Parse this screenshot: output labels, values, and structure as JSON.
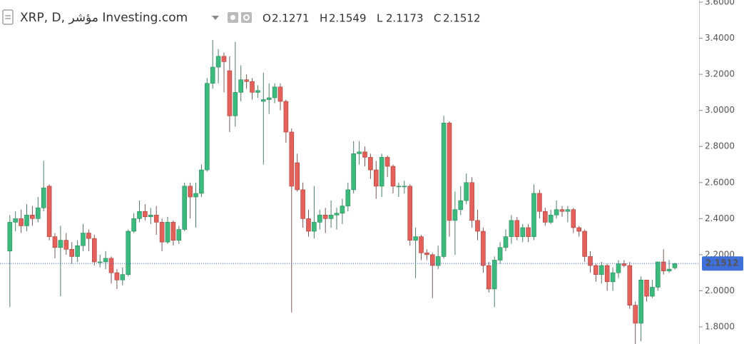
{
  "chart_data": {
    "type": "candlestick",
    "title": "XRP, D, مؤشر Investing.com",
    "header_labels": [
      "O",
      "H",
      "L",
      "C"
    ],
    "header_values": [
      2.1271,
      2.1549,
      2.1173,
      2.1512
    ],
    "current_price": 2.1512,
    "up_color": "#3cb97d",
    "down_color": "#e4605a",
    "price_line_color": "#3f6fd8",
    "ylim": [
      1.705,
      3.612
    ],
    "yticks": [
      {
        "value": 3.6,
        "label": "3.6000"
      },
      {
        "value": 3.4,
        "label": "3.4000"
      },
      {
        "value": 3.2,
        "label": "3.2000"
      },
      {
        "value": 3.0,
        "label": "3.0000"
      },
      {
        "value": 2.8,
        "label": "2.8000"
      },
      {
        "value": 2.6,
        "label": "2.6000"
      },
      {
        "value": 2.4,
        "label": "2.4000"
      },
      {
        "value": 2.2,
        "label": "2.2000"
      },
      {
        "value": 2.0,
        "label": "2.0000"
      },
      {
        "value": 1.8,
        "label": "1.8000"
      }
    ],
    "open": [
      2.22,
      2.38,
      2.4,
      2.36,
      2.42,
      2.4,
      2.46,
      2.58,
      2.3,
      2.24,
      2.28,
      2.23,
      2.19,
      2.25,
      2.32,
      2.29,
      2.16,
      2.16,
      2.18,
      2.1,
      2.06,
      2.09,
      2.33,
      2.4,
      2.44,
      2.41,
      2.42,
      2.38,
      2.27,
      2.38,
      2.28,
      2.34,
      2.58,
      2.52,
      2.54,
      2.67,
      3.15,
      3.24,
      3.3,
      3.22,
      2.97,
      3.1,
      3.17,
      3.16,
      3.1,
      3.05,
      3.06,
      3.07,
      3.13,
      3.05,
      2.88,
      2.71,
      2.56,
      2.4,
      2.33,
      2.38,
      2.42,
      2.4,
      2.42,
      2.43,
      2.47,
      2.56,
      2.76,
      2.77,
      2.74,
      2.67,
      2.58,
      2.74,
      2.69,
      2.58,
      2.58,
      2.58,
      2.28,
      2.3,
      2.21,
      2.2,
      2.14,
      2.19,
      2.93,
      2.39,
      2.45,
      2.5,
      2.6,
      2.39,
      2.33,
      2.14,
      2.01,
      2.17,
      2.24,
      2.3,
      2.39,
      2.3,
      2.35,
      2.3,
      2.54,
      2.44,
      2.38,
      2.42,
      2.45,
      2.44,
      2.45,
      2.35,
      2.33,
      2.19,
      2.14,
      2.09,
      2.14,
      2.05,
      2.1,
      2.15,
      2.14,
      1.92,
      1.82,
      2.06,
      1.97,
      2.02,
      2.16,
      2.11,
      2.1271
    ],
    "high": [
      2.42,
      2.44,
      2.45,
      2.48,
      2.47,
      2.52,
      2.72,
      2.59,
      2.32,
      2.36,
      2.32,
      2.27,
      2.28,
      2.37,
      2.34,
      2.31,
      2.2,
      2.22,
      2.19,
      2.12,
      2.13,
      2.34,
      2.43,
      2.5,
      2.48,
      2.46,
      2.47,
      2.4,
      2.41,
      2.39,
      2.36,
      2.6,
      2.6,
      2.6,
      2.7,
      3.18,
      3.39,
      3.34,
      3.32,
      3.3,
      3.38,
      3.25,
      3.2,
      3.18,
      3.14,
      3.21,
      3.15,
      3.15,
      3.15,
      3.06,
      2.9,
      2.76,
      2.6,
      2.45,
      2.58,
      2.45,
      2.46,
      2.5,
      2.46,
      2.51,
      2.6,
      2.83,
      2.83,
      2.8,
      2.76,
      2.72,
      2.76,
      2.75,
      2.7,
      2.6,
      2.61,
      2.59,
      2.35,
      2.31,
      2.23,
      2.21,
      2.25,
      2.97,
      2.94,
      2.55,
      2.58,
      2.65,
      2.63,
      2.45,
      2.35,
      2.16,
      2.19,
      2.27,
      2.34,
      2.42,
      2.41,
      2.37,
      2.37,
      2.59,
      2.56,
      2.46,
      2.45,
      2.5,
      2.47,
      2.47,
      2.46,
      2.36,
      2.34,
      2.22,
      2.15,
      2.16,
      2.15,
      2.13,
      2.17,
      2.17,
      2.16,
      1.94,
      2.08,
      2.06,
      2.06,
      2.16,
      2.23,
      2.17,
      2.1549
    ],
    "low": [
      1.91,
      2.33,
      2.32,
      2.33,
      2.36,
      2.38,
      2.44,
      2.28,
      2.18,
      1.97,
      2.2,
      2.15,
      2.16,
      2.22,
      2.22,
      2.14,
      2.13,
      2.12,
      2.04,
      2.01,
      2.03,
      2.08,
      2.32,
      2.38,
      2.39,
      2.37,
      2.31,
      2.22,
      2.26,
      2.25,
      2.26,
      2.33,
      2.4,
      2.35,
      2.52,
      2.66,
      3.12,
      3.15,
      3.1,
      2.88,
      2.91,
      3.05,
      3.12,
      3.06,
      3.07,
      2.7,
      2.98,
      3.04,
      3.0,
      2.82,
      1.88,
      2.55,
      2.35,
      2.3,
      2.29,
      2.34,
      2.32,
      2.35,
      2.34,
      2.37,
      2.44,
      2.54,
      2.7,
      2.69,
      2.62,
      2.51,
      2.52,
      2.63,
      2.54,
      2.52,
      2.54,
      2.25,
      2.07,
      2.17,
      2.17,
      1.96,
      2.12,
      2.18,
      2.3,
      2.2,
      2.42,
      2.48,
      2.35,
      2.28,
      2.1,
      1.99,
      1.91,
      2.15,
      2.22,
      2.26,
      2.28,
      2.27,
      2.27,
      2.28,
      2.4,
      2.36,
      2.37,
      2.4,
      2.41,
      2.38,
      2.32,
      2.3,
      2.16,
      2.1,
      2.05,
      2.04,
      2.0,
      2.0,
      2.07,
      2.13,
      1.9,
      1.7,
      1.72,
      1.94,
      1.96,
      2.0,
      2.09,
      2.1,
      2.1173
    ],
    "close": [
      2.38,
      2.4,
      2.36,
      2.42,
      2.4,
      2.46,
      2.57,
      2.3,
      2.24,
      2.28,
      2.23,
      2.19,
      2.25,
      2.32,
      2.29,
      2.16,
      2.16,
      2.18,
      2.1,
      2.06,
      2.09,
      2.33,
      2.4,
      2.44,
      2.41,
      2.42,
      2.38,
      2.27,
      2.38,
      2.28,
      2.34,
      2.58,
      2.52,
      2.54,
      2.67,
      3.15,
      3.24,
      3.3,
      3.27,
      2.97,
      3.1,
      3.17,
      3.16,
      3.1,
      3.11,
      3.06,
      3.07,
      3.13,
      3.05,
      2.88,
      2.58,
      2.56,
      2.4,
      2.33,
      2.38,
      2.42,
      2.4,
      2.42,
      2.43,
      2.47,
      2.56,
      2.76,
      2.77,
      2.74,
      2.67,
      2.58,
      2.74,
      2.69,
      2.58,
      2.58,
      2.58,
      2.28,
      2.3,
      2.21,
      2.2,
      2.14,
      2.19,
      2.93,
      2.39,
      2.45,
      2.5,
      2.6,
      2.39,
      2.33,
      2.14,
      2.01,
      2.17,
      2.24,
      2.3,
      2.39,
      2.3,
      2.35,
      2.3,
      2.54,
      2.44,
      2.38,
      2.42,
      2.45,
      2.44,
      2.45,
      2.35,
      2.33,
      2.19,
      2.14,
      2.09,
      2.14,
      2.05,
      2.1,
      2.15,
      2.14,
      1.92,
      1.82,
      2.06,
      1.97,
      2.02,
      2.16,
      2.11,
      2.12,
      2.1512
    ]
  }
}
